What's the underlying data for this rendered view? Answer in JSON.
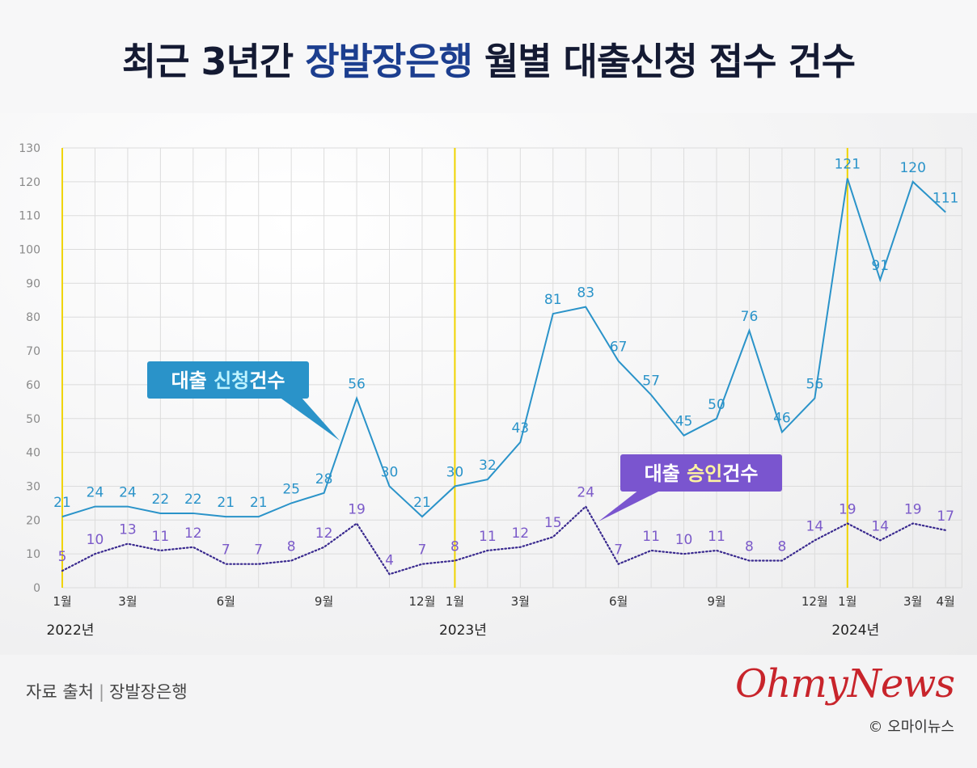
{
  "title": {
    "part1": "최근 3년간 ",
    "highlight": "장발장은행",
    "part2": " 월별 대출신청 접수 건수"
  },
  "chart_data": {
    "type": "line",
    "title": "최근 3년간 장발장은행 월별 대출신청 접수 건수",
    "x_ticks": [
      "1월",
      "3월",
      "6월",
      "9월",
      "12월",
      "1월",
      "3월",
      "6월",
      "9월",
      "12월",
      "1월",
      "3월",
      "4월"
    ],
    "x_tick_index": [
      0,
      2,
      5,
      8,
      11,
      12,
      14,
      17,
      20,
      23,
      24,
      26,
      27
    ],
    "year_labels": [
      {
        "label": "2022년",
        "index": 0
      },
      {
        "label": "2023년",
        "index": 12
      },
      {
        "label": "2024년",
        "index": 24
      }
    ],
    "ylim": [
      0,
      130
    ],
    "y_ticks": [
      0,
      10,
      20,
      30,
      40,
      50,
      60,
      70,
      80,
      90,
      100,
      110,
      120,
      130
    ],
    "grid": true,
    "series": [
      {
        "name": "대출신청건수",
        "color": "#2a93c9",
        "style": "solid",
        "values": [
          21,
          24,
          24,
          22,
          22,
          21,
          21,
          25,
          28,
          56,
          30,
          21,
          30,
          32,
          43,
          81,
          83,
          67,
          57,
          45,
          50,
          76,
          46,
          56,
          121,
          91,
          120,
          111
        ]
      },
      {
        "name": "대출승인건수",
        "color": "#3a2a8f",
        "label_color": "#7b5ac9",
        "style": "dotted",
        "values": [
          5,
          10,
          13,
          11,
          12,
          7,
          7,
          8,
          12,
          19,
          4,
          7,
          8,
          11,
          12,
          15,
          24,
          7,
          11,
          10,
          11,
          8,
          8,
          14,
          19,
          14,
          19,
          17
        ]
      }
    ],
    "callouts": [
      {
        "prefix": "대출 ",
        "highlight": "신청",
        "suffix": "건수",
        "bg": "#2a93c9",
        "hl_color": "#bdf3ff"
      },
      {
        "prefix": "대출 ",
        "highlight": "승인",
        "suffix": "건수",
        "bg": "#7a55cf",
        "hl_color": "#fff4a0"
      }
    ]
  },
  "footer": {
    "source_label": "자료 출처",
    "source_name": "장발장은행"
  },
  "brand": {
    "logo": "OhmyNews",
    "copyright": "© 오마이뉴스"
  }
}
